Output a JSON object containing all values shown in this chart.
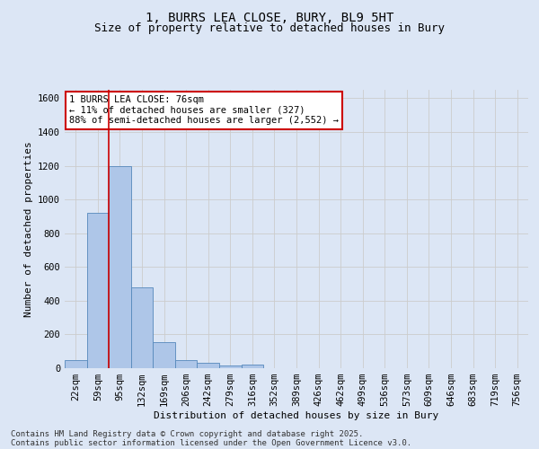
{
  "title_line1": "1, BURRS LEA CLOSE, BURY, BL9 5HT",
  "title_line2": "Size of property relative to detached houses in Bury",
  "xlabel": "Distribution of detached houses by size in Bury",
  "ylabel": "Number of detached properties",
  "categories": [
    "22sqm",
    "59sqm",
    "95sqm",
    "132sqm",
    "169sqm",
    "206sqm",
    "242sqm",
    "279sqm",
    "316sqm",
    "352sqm",
    "389sqm",
    "426sqm",
    "462sqm",
    "499sqm",
    "536sqm",
    "573sqm",
    "609sqm",
    "646sqm",
    "683sqm",
    "719sqm",
    "756sqm"
  ],
  "values": [
    50,
    920,
    1200,
    480,
    155,
    50,
    30,
    15,
    20,
    0,
    0,
    0,
    0,
    0,
    0,
    0,
    0,
    0,
    0,
    0,
    0
  ],
  "bar_color": "#aec6e8",
  "bar_edge_color": "#5588bb",
  "red_line_x": 1.5,
  "annotation_text": "1 BURRS LEA CLOSE: 76sqm\n← 11% of detached houses are smaller (327)\n88% of semi-detached houses are larger (2,552) →",
  "annotation_box_color": "#ffffff",
  "annotation_box_edge": "#cc0000",
  "ylim": [
    0,
    1650
  ],
  "yticks": [
    0,
    200,
    400,
    600,
    800,
    1000,
    1200,
    1400,
    1600
  ],
  "grid_color": "#cccccc",
  "background_color": "#dce6f5",
  "footer_line1": "Contains HM Land Registry data © Crown copyright and database right 2025.",
  "footer_line2": "Contains public sector information licensed under the Open Government Licence v3.0.",
  "title_fontsize": 10,
  "subtitle_fontsize": 9,
  "axis_label_fontsize": 8,
  "tick_fontsize": 7.5,
  "footer_fontsize": 6.5,
  "annot_fontsize": 7.5
}
